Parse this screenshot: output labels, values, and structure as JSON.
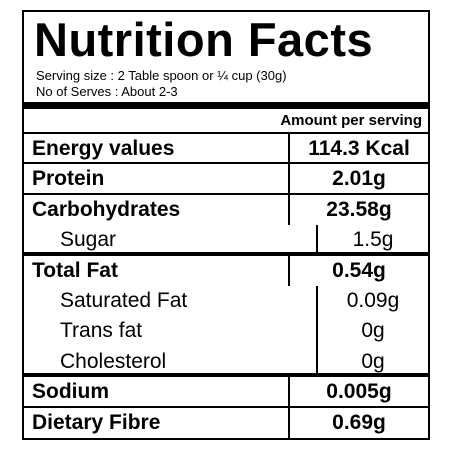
{
  "header": {
    "title": "Nutrition Facts",
    "serving_size": "Serving size : 2 Table spoon or ¼ cup (30g)",
    "servings": "No of Serves : About 2-3"
  },
  "table": {
    "column_header": "Amount per serving",
    "rows": [
      [
        "Energy values",
        "114.3 Kcal"
      ],
      [
        "Protein",
        "2.01g"
      ],
      [
        "Carbohydrates",
        "23.58g"
      ],
      [
        "Sugar",
        "1.5g"
      ],
      [
        "Total Fat",
        "0.54g"
      ],
      [
        "Saturated Fat",
        "0.09g"
      ],
      [
        "Trans fat",
        "0g"
      ],
      [
        "Cholesterol",
        "0g"
      ],
      [
        "Sodium",
        "0.005g"
      ],
      [
        "Dietary Fibre",
        "0.69g"
      ]
    ]
  }
}
